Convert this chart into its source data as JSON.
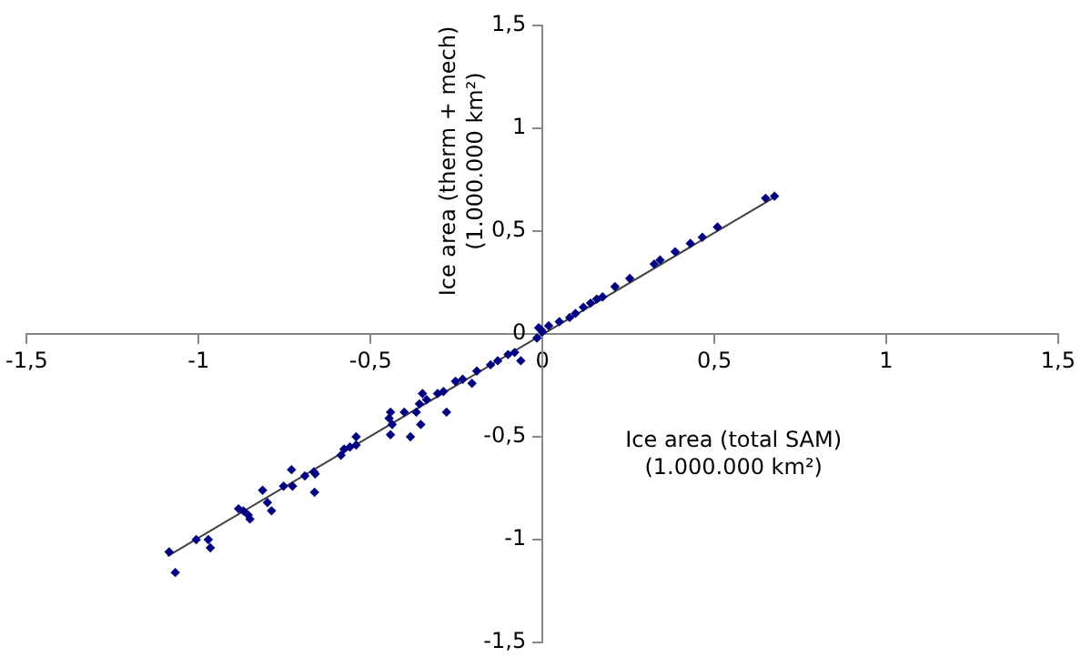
{
  "chart_data": {
    "type": "scatter",
    "xlabel": "Ice area (total SAM)\n(1.000.000 km²)",
    "ylabel": "Ice area (therm + mech)\n(1.000.000 km²)",
    "xlim": [
      -1.5,
      1.5
    ],
    "ylim": [
      -1.5,
      1.5
    ],
    "xticks": [
      {
        "value": -1.5,
        "label": "-1,5"
      },
      -1,
      {
        "value": -0.5,
        "label": "-0,5"
      },
      0,
      {
        "value": 0.5,
        "label": "0,5"
      },
      1,
      {
        "value": 1.5,
        "label": "1,5"
      }
    ],
    "yticks": [
      {
        "value": -1.5,
        "label": "-1,5"
      },
      -1,
      {
        "value": -0.5,
        "label": "-0,5"
      },
      0,
      {
        "value": 0.5,
        "label": "0,5"
      },
      1,
      {
        "value": 1.5,
        "label": "1,5"
      }
    ],
    "grid": false,
    "legend": false,
    "marker": "diamond",
    "series": [
      {
        "color": "#000080",
        "x": [
          -1.086,
          -1.068,
          -1.007,
          -0.972,
          -0.966,
          -0.884,
          -0.87,
          -0.856,
          -0.851,
          -0.814,
          -0.8,
          -0.788,
          -0.753,
          -0.73,
          -0.727,
          -0.691,
          -0.665,
          -0.661,
          -0.663,
          -0.586,
          -0.577,
          -0.56,
          -0.542,
          -0.542,
          -0.446,
          -0.442,
          -0.437,
          -0.442,
          -0.402,
          -0.384,
          -0.367,
          -0.358,
          -0.354,
          -0.349,
          -0.337,
          -0.305,
          -0.288,
          -0.279,
          -0.253,
          -0.232,
          -0.205,
          -0.191,
          -0.151,
          -0.13,
          -0.1,
          -0.081,
          -0.063,
          -0.016,
          -0.004,
          -0.011,
          0,
          0.018,
          0.049,
          0.079,
          0.096,
          0.119,
          0.14,
          0.158,
          0.175,
          0.211,
          0.254,
          0.325,
          0.342,
          0.386,
          0.43,
          0.465,
          0.509,
          0.649,
          0.675
        ],
        "values": [
          -1.06,
          -1.16,
          -1,
          -1,
          -1.04,
          -0.85,
          -0.86,
          -0.88,
          -0.9,
          -0.76,
          -0.82,
          -0.86,
          -0.74,
          -0.66,
          -0.74,
          -0.69,
          -0.67,
          -0.68,
          -0.77,
          -0.59,
          -0.56,
          -0.55,
          -0.5,
          -0.54,
          -0.41,
          -0.38,
          -0.44,
          -0.49,
          -0.38,
          -0.5,
          -0.38,
          -0.34,
          -0.44,
          -0.29,
          -0.32,
          -0.29,
          -0.28,
          -0.38,
          -0.23,
          -0.22,
          -0.24,
          -0.18,
          -0.15,
          -0.13,
          -0.1,
          -0.09,
          -0.13,
          -0.02,
          0.02,
          0.03,
          0.01,
          0.04,
          0.06,
          0.08,
          0.1,
          0.13,
          0.15,
          0.17,
          0.18,
          0.23,
          0.27,
          0.34,
          0.36,
          0.4,
          0.44,
          0.47,
          0.52,
          0.66,
          0.67
        ]
      },
      {
        "type": "line",
        "color": "#404040",
        "marker": "none",
        "x": [
          -1.09,
          0.68
        ],
        "values": [
          -1.08,
          0.67
        ]
      }
    ]
  }
}
